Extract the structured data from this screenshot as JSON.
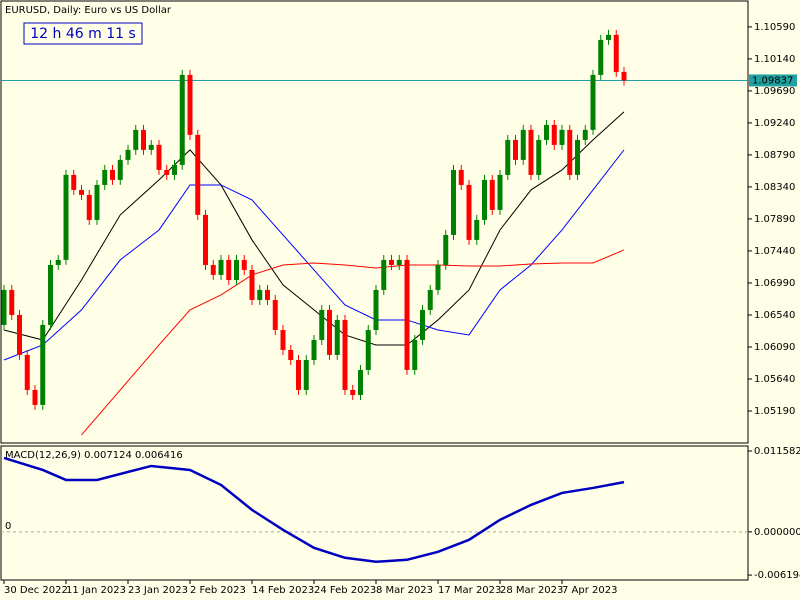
{
  "chart_data": [
    {
      "type": "candlestick",
      "title": "EURUSD, Daily:  Euro vs US Dollar",
      "timer": "12 h 46 m 11 s",
      "up_color": "#008000",
      "down_color": "#ff0000",
      "open": [
        1.064,
        1.06892,
        1.0654,
        1.05978,
        1.05486,
        1.05275,
        1.064,
        1.07243,
        1.07314,
        1.08509,
        1.08298,
        1.08228,
        1.07876,
        1.08368,
        1.08579,
        1.08439,
        1.0872,
        1.08861,
        1.09142,
        1.08861,
        1.08931,
        1.08579,
        1.08509,
        1.0865,
        1.09915,
        1.09072,
        1.07947,
        1.07243,
        1.07103,
        1.07314,
        1.07032,
        1.07314,
        1.07173,
        1.06751,
        1.06892,
        1.06751,
        1.06329,
        1.06048,
        1.05907,
        1.05486,
        1.05907,
        1.06189,
        1.06611,
        1.05978,
        1.0647,
        1.05486,
        1.05415,
        1.05767,
        1.06329,
        1.06892,
        1.07314,
        1.07243,
        1.07314,
        1.05767,
        1.06189,
        1.06611,
        1.06892,
        1.07243,
        1.07665,
        1.08579,
        1.08368,
        1.07595,
        1.07876,
        1.08439,
        1.08017,
        1.08509,
        1.09001,
        1.0872,
        1.09142,
        1.08509,
        1.09001,
        1.09212,
        1.08931,
        1.09142,
        1.08509,
        1.09001,
        1.09142,
        1.09915,
        1.10407,
        1.10478,
        1.09957
      ],
      "high": [
        1.06962,
        1.06962,
        1.0661,
        1.06048,
        1.05556,
        1.0647,
        1.07313,
        1.07384,
        1.08579,
        1.08579,
        1.08368,
        1.08298,
        1.08438,
        1.08649,
        1.08649,
        1.0879,
        1.08931,
        1.09212,
        1.09212,
        1.09001,
        1.09001,
        1.08649,
        1.0872,
        1.09985,
        1.09985,
        1.09142,
        1.08017,
        1.07313,
        1.07384,
        1.07384,
        1.07384,
        1.07384,
        1.07243,
        1.06962,
        1.06962,
        1.06821,
        1.06399,
        1.06118,
        1.05977,
        1.05977,
        1.06259,
        1.06681,
        1.06681,
        1.0654,
        1.0654,
        1.05556,
        1.05837,
        1.06399,
        1.06962,
        1.07384,
        1.07384,
        1.07384,
        1.07384,
        1.06259,
        1.06681,
        1.06962,
        1.07313,
        1.07735,
        1.08649,
        1.08649,
        1.08438,
        1.07946,
        1.08509,
        1.08509,
        1.08579,
        1.09071,
        1.09071,
        1.09212,
        1.09212,
        1.09071,
        1.09282,
        1.09282,
        1.09212,
        1.09212,
        1.09071,
        1.09212,
        1.09985,
        1.10477,
        1.10548,
        1.10548,
        1.10027
      ],
      "low": [
        1.0633,
        1.0647,
        1.05908,
        1.05416,
        1.05205,
        1.05205,
        1.0633,
        1.07173,
        1.07244,
        1.08228,
        1.08158,
        1.07806,
        1.07806,
        1.08298,
        1.08369,
        1.08369,
        1.0865,
        1.08791,
        1.08791,
        1.08791,
        1.08509,
        1.08439,
        1.08439,
        1.0858,
        1.09002,
        1.07877,
        1.07173,
        1.07033,
        1.07033,
        1.06962,
        1.06962,
        1.07103,
        1.06681,
        1.06681,
        1.06681,
        1.06259,
        1.05978,
        1.05837,
        1.05416,
        1.05416,
        1.05837,
        1.06119,
        1.05908,
        1.05908,
        1.05416,
        1.05345,
        1.05345,
        1.05697,
        1.06259,
        1.06822,
        1.07173,
        1.07173,
        1.05697,
        1.05697,
        1.06119,
        1.06541,
        1.06822,
        1.07173,
        1.07595,
        1.08298,
        1.07525,
        1.07525,
        1.07806,
        1.07947,
        1.07947,
        1.08439,
        1.0865,
        1.0865,
        1.08439,
        1.08439,
        1.08931,
        1.08861,
        1.08861,
        1.08439,
        1.08439,
        1.08931,
        1.09072,
        1.09845,
        1.10337,
        1.09887,
        1.09767
      ],
      "close": [
        1.06892,
        1.0654,
        1.05978,
        1.05486,
        1.05275,
        1.064,
        1.07243,
        1.07314,
        1.08509,
        1.08298,
        1.08228,
        1.07876,
        1.08368,
        1.08579,
        1.08439,
        1.0872,
        1.08861,
        1.09142,
        1.08861,
        1.08931,
        1.08579,
        1.08509,
        1.0865,
        1.09915,
        1.09072,
        1.07947,
        1.07243,
        1.07103,
        1.07314,
        1.07032,
        1.07314,
        1.07173,
        1.06751,
        1.06892,
        1.06751,
        1.06329,
        1.06048,
        1.05907,
        1.05486,
        1.05907,
        1.06189,
        1.06611,
        1.05978,
        1.0647,
        1.05486,
        1.05415,
        1.05767,
        1.06329,
        1.06892,
        1.07314,
        1.07243,
        1.07314,
        1.05767,
        1.06189,
        1.06611,
        1.06892,
        1.07243,
        1.07665,
        1.08579,
        1.08368,
        1.07595,
        1.07876,
        1.08439,
        1.08017,
        1.08509,
        1.09001,
        1.0872,
        1.09142,
        1.08509,
        1.09001,
        1.09212,
        1.08931,
        1.09142,
        1.08509,
        1.09001,
        1.09142,
        1.09915,
        1.10407,
        1.10478,
        1.09957,
        1.09837
      ],
      "overlays": [
        {
          "color": "#000000",
          "x": [
            0,
            5,
            10,
            15,
            20,
            24,
            28,
            32,
            36,
            40,
            44,
            48,
            52,
            56,
            60,
            64,
            68,
            72,
            76,
            80
          ],
          "values": [
            1.06329,
            1.06188,
            1.07032,
            1.07947,
            1.08439,
            1.08861,
            1.08368,
            1.07595,
            1.06962,
            1.06611,
            1.06259,
            1.06118,
            1.06118,
            1.0647,
            1.06892,
            1.07735,
            1.08298,
            1.08579,
            1.09001,
            1.09395
          ]
        },
        {
          "color": "#0000ff",
          "x": [
            0,
            5,
            10,
            15,
            20,
            24,
            28,
            32,
            36,
            40,
            44,
            48,
            52,
            56,
            60,
            64,
            68,
            72,
            76,
            80
          ],
          "values": [
            1.05907,
            1.06118,
            1.06611,
            1.07314,
            1.07735,
            1.08368,
            1.08368,
            1.08157,
            1.07665,
            1.07173,
            1.06681,
            1.0647,
            1.0647,
            1.06329,
            1.06259,
            1.06892,
            1.07243,
            1.07735,
            1.08298,
            1.08861
          ]
        },
        {
          "color": "#ff0000",
          "x": [
            10,
            15,
            20,
            24,
            28,
            32,
            36,
            40,
            44,
            48,
            52,
            56,
            60,
            64,
            68,
            72,
            76,
            80
          ],
          "values": [
            1.04853,
            1.05486,
            1.06118,
            1.06611,
            1.06821,
            1.07103,
            1.07243,
            1.07271,
            1.07243,
            1.07201,
            1.07243,
            1.07243,
            1.07229,
            1.07229,
            1.07257,
            1.07271,
            1.07271,
            1.07454
          ]
        }
      ],
      "last_price": 1.09837,
      "last_price_color": "#20a0a0",
      "ylim": [
        1.0474,
        1.1094
      ],
      "yticks": [
        {
          "value": 1.1059,
          "label": "1.10590"
        },
        {
          "value": 1.1014,
          "label": "1.10140"
        },
        {
          "value": 1.0969,
          "label": "1.09690"
        },
        {
          "value": 1.0924,
          "label": "1.09240"
        },
        {
          "value": 1.0879,
          "label": "1.08790"
        },
        {
          "value": 1.0834,
          "label": "1.08340"
        },
        {
          "value": 1.0789,
          "label": "1.07890"
        },
        {
          "value": 1.0744,
          "label": "1.07440"
        },
        {
          "value": 1.0699,
          "label": "1.06990"
        },
        {
          "value": 1.0654,
          "label": "1.06540"
        },
        {
          "value": 1.0609,
          "label": "1.06090"
        },
        {
          "value": 1.0564,
          "label": "1.05640"
        },
        {
          "value": 1.0519,
          "label": "1.05190"
        }
      ],
      "xticks": [
        {
          "value": 0,
          "label": "30 Dec 2022"
        },
        {
          "value": 8,
          "label": "11 Jan 2023"
        },
        {
          "value": 16,
          "label": "23 Jan 2023"
        },
        {
          "value": 24,
          "label": "2 Feb 2023"
        },
        {
          "value": 32,
          "label": "14 Feb 2023"
        },
        {
          "value": 40,
          "label": "24 Feb 2023"
        },
        {
          "value": 48,
          "label": "8 Mar 2023"
        },
        {
          "value": 56,
          "label": "17 Mar 2023"
        },
        {
          "value": 64,
          "label": "28 Mar 2023"
        },
        {
          "value": 72,
          "label": "7 Apr 2023"
        }
      ]
    },
    {
      "type": "line",
      "title": "MACD(12,26,9) 0.007124 0.006416",
      "zero_label": "0",
      "series": [
        {
          "color": "#0000c0",
          "x": [
            0,
            5,
            8,
            12,
            19,
            24,
            28,
            32,
            36,
            40,
            44,
            48,
            52,
            56,
            60,
            64,
            68,
            72,
            76,
            80
          ],
          "values": [
            0.010582,
            0.008866,
            0.007436,
            0.007436,
            0.009438,
            0.008866,
            0.006721,
            0.003146,
            0.000286,
            -0.002288,
            -0.003718,
            -0.00429,
            -0.004004,
            -0.00286,
            -0.001144,
            0.001716,
            0.003861,
            0.005577,
            0.006292,
            0.007124
          ]
        }
      ],
      "ylim": [
        -0.0069,
        0.0123
      ],
      "yticks": [
        0.011582,
        {
          "value": 0,
          "label": "0.000000"
        },
        -0.006194
      ]
    }
  ]
}
